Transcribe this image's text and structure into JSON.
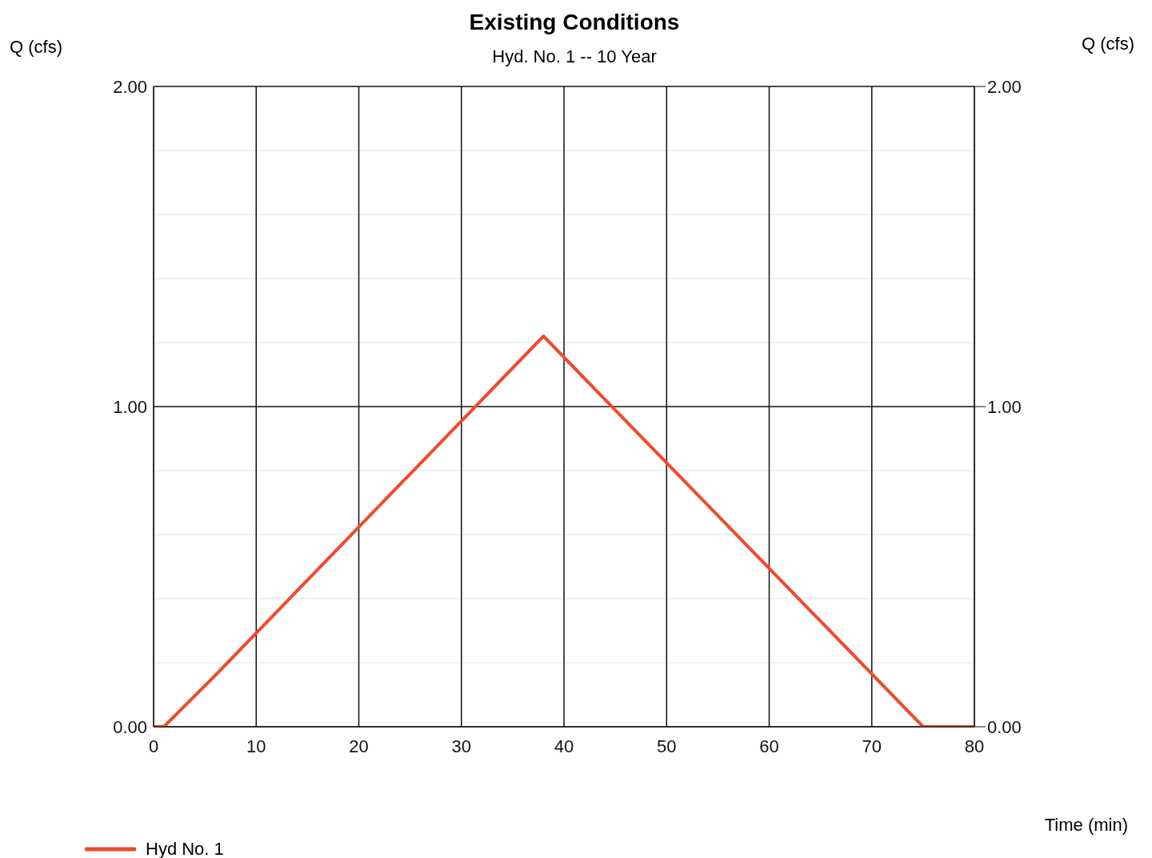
{
  "chart_data": {
    "type": "line",
    "title": "Existing Conditions",
    "subtitle": "Hyd. No. 1 -- 10 Year",
    "xlabel": "Time (min)",
    "ylabel": "Q (cfs)",
    "y2label": "Q (cfs)",
    "series": [
      {
        "name": "Hyd No. 1",
        "color": "#f04a2a",
        "x": [
          0,
          1,
          6,
          38,
          75,
          80
        ],
        "values": [
          0,
          0,
          0.16,
          1.22,
          0,
          0
        ]
      }
    ],
    "xlim": [
      0,
      80
    ],
    "xticks": [
      0,
      10,
      20,
      30,
      40,
      50,
      60,
      70,
      80
    ],
    "ylim": [
      0,
      2
    ],
    "yticks": [
      {
        "value": 0,
        "label": "0.00"
      },
      {
        "value": 0.2,
        "label": null
      },
      {
        "value": 0.4,
        "label": null
      },
      {
        "value": 0.6,
        "label": null
      },
      {
        "value": 0.8,
        "label": null
      },
      {
        "value": 1,
        "label": "1.00"
      },
      {
        "value": 1.2,
        "label": null
      },
      {
        "value": 1.4,
        "label": null
      },
      {
        "value": 1.6,
        "label": null
      },
      {
        "value": 1.8,
        "label": null
      },
      {
        "value": 2,
        "label": "2.00"
      }
    ],
    "y2lim": [
      0,
      2
    ],
    "y2ticks": [
      {
        "value": 0,
        "label": "0.00"
      },
      {
        "value": 1,
        "label": "1.00"
      },
      {
        "value": 2,
        "label": "2.00"
      }
    ],
    "grid": true,
    "legend": "bottom left",
    "marker": "none",
    "line_style": "solid"
  }
}
